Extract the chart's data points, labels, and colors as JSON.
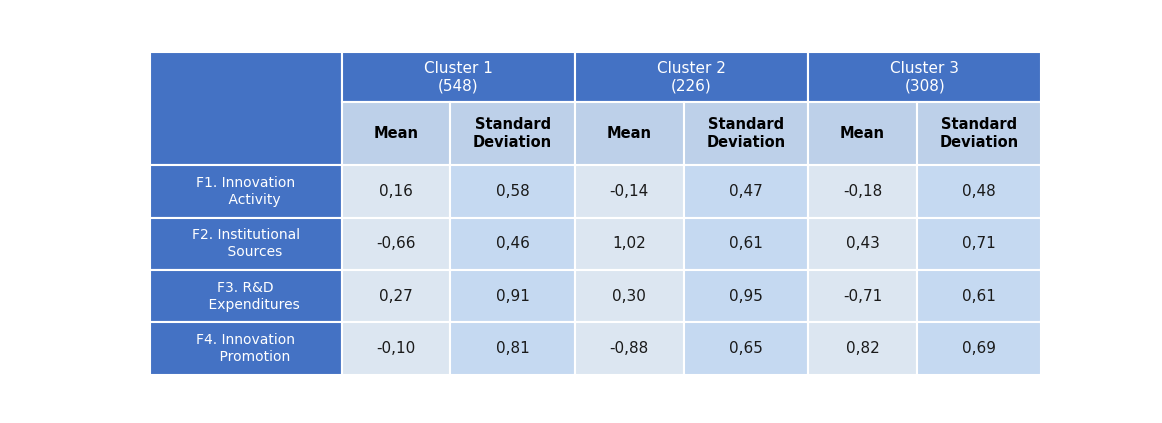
{
  "cluster_headers": [
    "Cluster 1\n(548)",
    "Cluster 2\n(226)",
    "Cluster 3\n(308)"
  ],
  "sub_headers": [
    "Mean",
    "Standard\nDeviation",
    "Mean",
    "Standard\nDeviation",
    "Mean",
    "Standard\nDeviation"
  ],
  "row_labels": [
    "F1. Innovation\n    Activity",
    "F2. Institutional\n    Sources",
    "F3. R&D\n    Expenditures",
    "F4. Innovation\n    Promotion"
  ],
  "data": [
    [
      "0,16",
      "0,58",
      "-0,14",
      "0,47",
      "-0,18",
      "0,48"
    ],
    [
      "-0,66",
      "0,46",
      "1,02",
      "0,61",
      "0,43",
      "0,71"
    ],
    [
      "0,27",
      "0,91",
      "0,30",
      "0,95",
      "-0,71",
      "0,61"
    ],
    [
      "-0,10",
      "0,81",
      "-0,88",
      "0,65",
      "0,82",
      "0,69"
    ]
  ],
  "header_bg": "#4472C4",
  "header_fg": "#FFFFFF",
  "subheader_bg": "#BDD0E9",
  "subheader_fg": "#000000",
  "row_label_bg": "#4472C4",
  "row_label_fg": "#FFFFFF",
  "data_bg_a": "#DCE6F1",
  "data_bg_b": "#C5D9F1",
  "border_color": "#FFFFFF",
  "fig_bg": "#FFFFFF"
}
